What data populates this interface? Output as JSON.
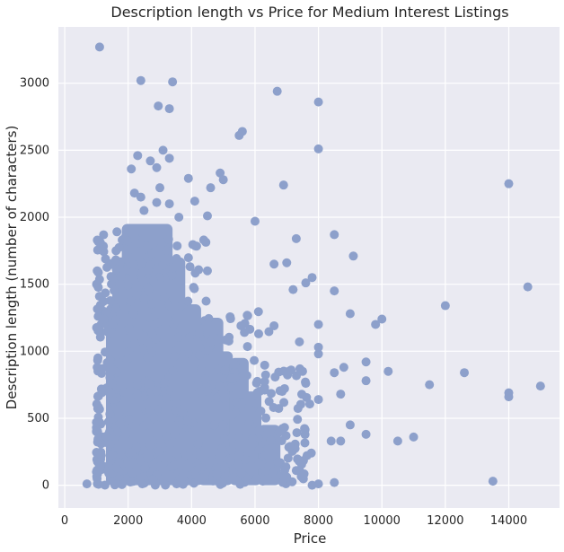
{
  "chart_data": {
    "type": "scatter",
    "title": "Description length vs Price for Medium Interest Listings",
    "xlabel": "Price",
    "ylabel": "Description length (number of characters)",
    "xlim": [
      -200,
      15600
    ],
    "ylim": [
      -170,
      3420
    ],
    "x_ticks": [
      0,
      2000,
      4000,
      6000,
      8000,
      10000,
      12000,
      14000
    ],
    "y_ticks": [
      0,
      500,
      1000,
      1500,
      2000,
      2500,
      3000
    ],
    "grid": true,
    "legend": "none",
    "colors": {
      "background": "#eaeaf2",
      "grid": "#ffffff",
      "marker": "#8da0cb"
    },
    "points": [
      [
        1100,
        3270
      ],
      [
        2400,
        3020
      ],
      [
        3400,
        3010
      ],
      [
        6700,
        2940
      ],
      [
        2950,
        2830
      ],
      [
        3300,
        2810
      ],
      [
        8000,
        2860
      ],
      [
        5600,
        2640
      ],
      [
        5500,
        2610
      ],
      [
        8000,
        2510
      ],
      [
        2300,
        2460
      ],
      [
        3100,
        2500
      ],
      [
        3300,
        2440
      ],
      [
        2900,
        2370
      ],
      [
        2100,
        2360
      ],
      [
        2700,
        2420
      ],
      [
        3900,
        2290
      ],
      [
        4900,
        2330
      ],
      [
        5000,
        2280
      ],
      [
        4600,
        2220
      ],
      [
        6900,
        2240
      ],
      [
        2200,
        2180
      ],
      [
        2400,
        2150
      ],
      [
        2900,
        2110
      ],
      [
        3300,
        2100
      ],
      [
        14000,
        2250
      ],
      [
        4100,
        2120
      ],
      [
        4500,
        2010
      ],
      [
        6000,
        1970
      ],
      [
        8500,
        1870
      ],
      [
        7300,
        1840
      ],
      [
        9100,
        1710
      ],
      [
        3000,
        2220
      ],
      [
        2500,
        2050
      ],
      [
        3600,
        2000
      ],
      [
        14600,
        1480
      ],
      [
        12000,
        1340
      ],
      [
        6600,
        1650
      ],
      [
        7000,
        1660
      ],
      [
        7800,
        1550
      ],
      [
        7600,
        1510
      ],
      [
        7200,
        1460
      ],
      [
        8500,
        1450
      ],
      [
        9000,
        1280
      ],
      [
        9800,
        1200
      ],
      [
        10000,
        1240
      ],
      [
        8000,
        1200
      ],
      [
        8800,
        880
      ],
      [
        9500,
        920
      ],
      [
        10200,
        850
      ],
      [
        11500,
        750
      ],
      [
        12600,
        840
      ],
      [
        14000,
        690
      ],
      [
        14000,
        660
      ],
      [
        15000,
        740
      ],
      [
        9500,
        780
      ],
      [
        9000,
        450
      ],
      [
        9500,
        380
      ],
      [
        10500,
        330
      ],
      [
        11000,
        360
      ],
      [
        8700,
        330
      ],
      [
        8400,
        330
      ],
      [
        13500,
        30
      ],
      [
        8500,
        20
      ],
      [
        8000,
        10
      ],
      [
        7800,
        0
      ],
      [
        7300,
        110
      ],
      [
        700,
        10
      ],
      [
        1000,
        470
      ],
      [
        1200,
        700
      ],
      [
        1000,
        100
      ],
      [
        8000,
        1030
      ],
      [
        8000,
        980
      ],
      [
        8500,
        840
      ],
      [
        7500,
        850
      ],
      [
        8700,
        680
      ],
      [
        8000,
        640
      ],
      [
        7600,
        760
      ],
      [
        7400,
        1070
      ],
      [
        6600,
        1190
      ]
    ]
  }
}
